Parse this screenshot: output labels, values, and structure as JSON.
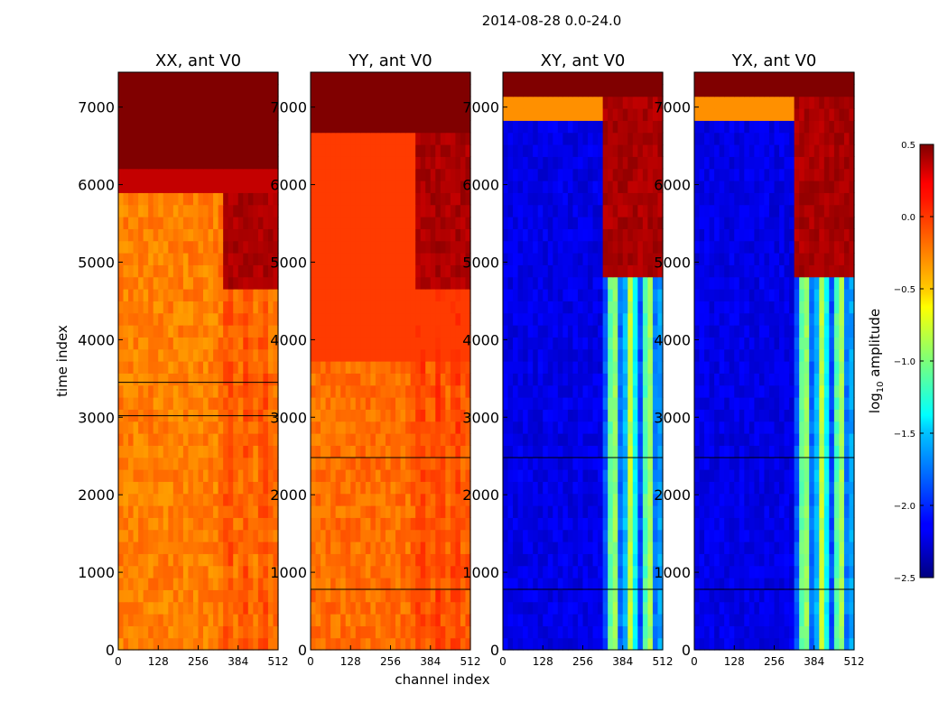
{
  "figure": {
    "suptitle": "2014-08-28 0.0-24.0",
    "xlabel": "channel index",
    "ylabel": "time index"
  },
  "chart_data": {
    "type": "heatmap",
    "xlim": [
      0,
      512
    ],
    "ylim": [
      0,
      7450
    ],
    "x_ticks": [
      0,
      128,
      256,
      384,
      512
    ],
    "y_ticks": [
      0,
      1000,
      2000,
      3000,
      4000,
      5000,
      6000,
      7000
    ],
    "colorbar": {
      "label_base": "log",
      "label_sub": "10",
      "label_rest": " amplitude",
      "range": [
        -2.5,
        0.5
      ],
      "ticks": [
        0.5,
        0.0,
        -0.5,
        -1.0,
        -1.5,
        -2.0,
        -2.5
      ],
      "tick_labels": [
        "0.5",
        "0.0",
        "−0.5",
        "−1.0",
        "−1.5",
        "−2.0",
        "−2.5"
      ],
      "colormap": "jet"
    },
    "panels": [
      {
        "title": "XX, ant V0",
        "base_level": -0.25,
        "band_boost": 0.15,
        "hot_regions": [
          {
            "t0": 6250,
            "t1": 7450,
            "level": 0.5
          },
          {
            "t0": 5950,
            "t1": 6250,
            "level": 0.3
          },
          {
            "t0": 3720,
            "t1": 3760,
            "level": -0.1
          }
        ],
        "channel_hot": {
          "c0": 330,
          "c1": 512,
          "t0": 4700,
          "t1": 5950,
          "level": 0.45
        },
        "dark_lines": [
          3450,
          3020
        ]
      },
      {
        "title": "YY, ant V0",
        "base_level": -0.2,
        "band_boost": 0.15,
        "hot_regions": [
          {
            "t0": 6700,
            "t1": 7450,
            "level": 0.5
          },
          {
            "t0": 3750,
            "t1": 6700,
            "level": -0.05
          }
        ],
        "channel_hot": {
          "c0": 330,
          "c1": 512,
          "t0": 4700,
          "t1": 6700,
          "level": 0.45
        },
        "dark_lines": [
          2480,
          780
        ]
      },
      {
        "title": "XY, ant V0",
        "base_level": -2.2,
        "band_boost": 1.4,
        "hot_regions": [
          {
            "t0": 7100,
            "t1": 7450,
            "level": 0.5
          },
          {
            "t0": 6850,
            "t1": 7100,
            "level": -0.3
          }
        ],
        "channel_hot": {
          "c0": 325,
          "c1": 512,
          "t0": 4800,
          "t1": 7450,
          "level": 0.45
        },
        "dark_lines": [
          2480,
          780
        ]
      },
      {
        "title": "YX, ant V0",
        "base_level": -2.2,
        "band_boost": 1.4,
        "hot_regions": [
          {
            "t0": 7100,
            "t1": 7450,
            "level": 0.5
          },
          {
            "t0": 6850,
            "t1": 7100,
            "level": -0.3
          }
        ],
        "channel_hot": {
          "c0": 325,
          "c1": 512,
          "t0": 4800,
          "t1": 7450,
          "level": 0.45
        },
        "dark_lines": [
          2480,
          780
        ]
      }
    ]
  }
}
